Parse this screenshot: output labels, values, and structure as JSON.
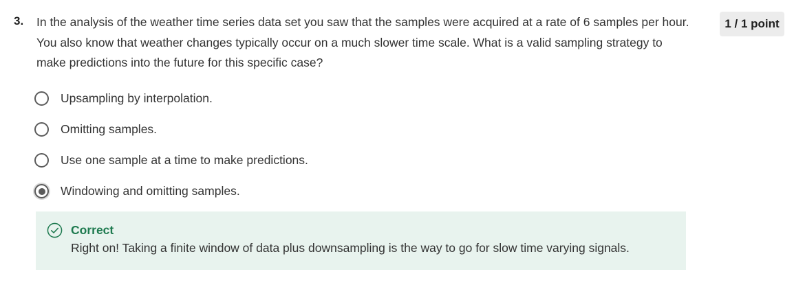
{
  "question": {
    "number": "3.",
    "text": "In the analysis of the weather time series data set you saw that the samples were acquired at a rate of 6 samples per hour. You also know that weather changes typically occur on a much slower time scale. What is a valid sampling strategy to make predictions into the future for this specific case?",
    "score": "1 / 1 point"
  },
  "options": [
    {
      "label": "Upsampling by interpolation.",
      "selected": false
    },
    {
      "label": "Omitting samples.",
      "selected": false
    },
    {
      "label": "Use one sample at a time to make predictions.",
      "selected": false
    },
    {
      "label": "Windowing and omitting samples.",
      "selected": true
    }
  ],
  "feedback": {
    "icon": "check-circle-icon",
    "title": "Correct",
    "text": "Right on! Taking a finite window of data plus downsampling is the way to go for slow time varying signals.",
    "color": "#1e7a4f",
    "background": "#e8f3ee"
  }
}
